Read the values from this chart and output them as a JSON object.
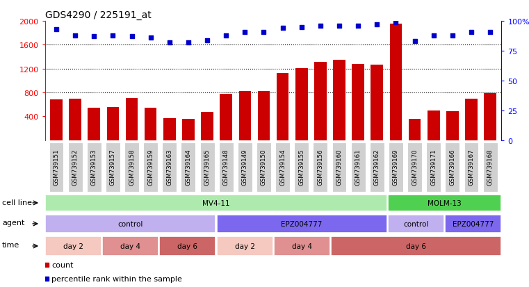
{
  "title": "GDS4290 / 225191_at",
  "samples": [
    "GSM739151",
    "GSM739152",
    "GSM739153",
    "GSM739157",
    "GSM739158",
    "GSM739159",
    "GSM739163",
    "GSM739164",
    "GSM739165",
    "GSM739148",
    "GSM739149",
    "GSM739150",
    "GSM739154",
    "GSM739155",
    "GSM739156",
    "GSM739160",
    "GSM739161",
    "GSM739162",
    "GSM739169",
    "GSM739170",
    "GSM739171",
    "GSM739166",
    "GSM739167",
    "GSM739168"
  ],
  "counts": [
    680,
    700,
    540,
    560,
    710,
    540,
    370,
    360,
    470,
    780,
    830,
    830,
    1130,
    1210,
    1310,
    1350,
    1280,
    1270,
    1950,
    360,
    500,
    490,
    700,
    790
  ],
  "percentiles": [
    93,
    88,
    87,
    88,
    87,
    86,
    82,
    82,
    84,
    88,
    91,
    91,
    94,
    95,
    96,
    96,
    96,
    97,
    99,
    83,
    88,
    88,
    91,
    91
  ],
  "bar_color": "#cc0000",
  "dot_color": "#0000cc",
  "ylim_left": [
    0,
    2000
  ],
  "ylim_right": [
    0,
    100
  ],
  "yticks_left": [
    400,
    800,
    1200,
    1600,
    2000
  ],
  "yticks_right": [
    0,
    25,
    50,
    75,
    100
  ],
  "grid_values": [
    800,
    1200,
    1600
  ],
  "cell_line_groups": [
    {
      "label": "MV4-11",
      "start": 0,
      "end": 18,
      "color": "#aeeaae"
    },
    {
      "label": "MOLM-13",
      "start": 18,
      "end": 24,
      "color": "#50d050"
    }
  ],
  "agent_groups": [
    {
      "label": "control",
      "start": 0,
      "end": 9,
      "color": "#c0b0f0"
    },
    {
      "label": "EPZ004777",
      "start": 9,
      "end": 18,
      "color": "#7b68ee"
    },
    {
      "label": "control",
      "start": 18,
      "end": 21,
      "color": "#c0b0f0"
    },
    {
      "label": "EPZ004777",
      "start": 21,
      "end": 24,
      "color": "#7b68ee"
    }
  ],
  "time_groups": [
    {
      "label": "day 2",
      "start": 0,
      "end": 3,
      "color": "#f5c8c0"
    },
    {
      "label": "day 4",
      "start": 3,
      "end": 6,
      "color": "#e09090"
    },
    {
      "label": "day 6",
      "start": 6,
      "end": 9,
      "color": "#cc6666"
    },
    {
      "label": "day 2",
      "start": 9,
      "end": 12,
      "color": "#f5c8c0"
    },
    {
      "label": "day 4",
      "start": 12,
      "end": 15,
      "color": "#e09090"
    },
    {
      "label": "day 6",
      "start": 15,
      "end": 24,
      "color": "#cc6666"
    }
  ],
  "bg_color": "#ffffff",
  "plot_bg_color": "#ffffff",
  "xtick_box_color": "#d0d0d0",
  "legend_count_color": "#cc0000",
  "legend_pct_color": "#0000cc"
}
